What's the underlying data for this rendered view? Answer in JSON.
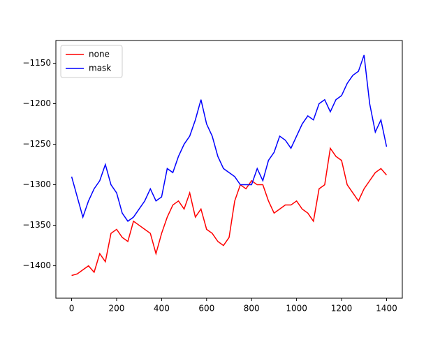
{
  "chart_data": {
    "type": "line",
    "x": [
      0,
      25,
      50,
      75,
      100,
      125,
      150,
      175,
      200,
      225,
      250,
      275,
      300,
      325,
      350,
      375,
      400,
      425,
      450,
      475,
      500,
      525,
      550,
      575,
      600,
      625,
      650,
      675,
      700,
      725,
      750,
      775,
      800,
      825,
      850,
      875,
      900,
      925,
      950,
      975,
      1000,
      1025,
      1050,
      1075,
      1100,
      1125,
      1150,
      1175,
      1200,
      1225,
      1250,
      1275,
      1300,
      1325,
      1350,
      1375,
      1400
    ],
    "series": [
      {
        "name": "none",
        "color": "#ff0000",
        "values": [
          -1412,
          -1410,
          -1405,
          -1400,
          -1408,
          -1385,
          -1395,
          -1360,
          -1355,
          -1365,
          -1370,
          -1345,
          -1350,
          -1355,
          -1360,
          -1385,
          -1360,
          -1340,
          -1325,
          -1320,
          -1330,
          -1310,
          -1340,
          -1330,
          -1355,
          -1360,
          -1370,
          -1375,
          -1365,
          -1320,
          -1300,
          -1305,
          -1295,
          -1300,
          -1300,
          -1320,
          -1335,
          -1330,
          -1325,
          -1325,
          -1320,
          -1330,
          -1335,
          -1345,
          -1305,
          -1300,
          -1255,
          -1265,
          -1270,
          -1300,
          -1310,
          -1320,
          -1305,
          -1295,
          -1285,
          -1280,
          -1288
        ]
      },
      {
        "name": "mask",
        "color": "#0000ff",
        "values": [
          -1290,
          -1315,
          -1340,
          -1320,
          -1305,
          -1295,
          -1275,
          -1300,
          -1310,
          -1335,
          -1345,
          -1340,
          -1330,
          -1320,
          -1305,
          -1320,
          -1315,
          -1280,
          -1285,
          -1265,
          -1250,
          -1240,
          -1220,
          -1195,
          -1225,
          -1240,
          -1265,
          -1280,
          -1285,
          -1290,
          -1300,
          -1300,
          -1300,
          -1280,
          -1295,
          -1270,
          -1260,
          -1240,
          -1245,
          -1255,
          -1240,
          -1225,
          -1215,
          -1220,
          -1200,
          -1195,
          -1210,
          -1195,
          -1190,
          -1175,
          -1165,
          -1160,
          -1140,
          -1200,
          -1235,
          -1220,
          -1253
        ]
      }
    ],
    "xlim": [
      -70,
      1470
    ],
    "ylim": [
      -1440,
      -1122
    ],
    "xticks": [
      0,
      200,
      400,
      600,
      800,
      1000,
      1200,
      1400
    ],
    "yticks": [
      {
        "value": -1400,
        "label": "−1400"
      },
      {
        "value": -1350,
        "label": "−1350"
      },
      {
        "value": -1300,
        "label": "−1300"
      },
      {
        "value": -1250,
        "label": "−1250"
      },
      {
        "value": -1200,
        "label": "−1200"
      },
      {
        "value": -1150,
        "label": "−1150"
      }
    ],
    "legend": "upper left"
  }
}
